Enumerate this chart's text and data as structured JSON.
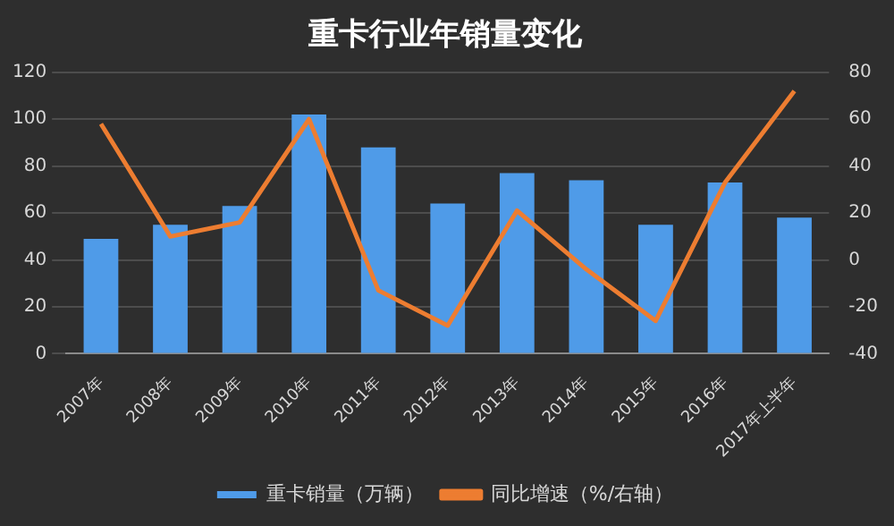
{
  "chart_data": {
    "type": "bar",
    "title": "重卡行业年销量变化",
    "categories": [
      "2007年",
      "2008年",
      "2009年",
      "2010年",
      "2011年",
      "2012年",
      "2013年",
      "2014年",
      "2015年",
      "2016年",
      "2017年上半年"
    ],
    "series": [
      {
        "name": "重卡销量（万辆）",
        "color": "#4f9be8",
        "values": [
          49,
          55,
          63,
          102,
          88,
          64,
          77,
          74,
          55,
          73,
          58
        ]
      },
      {
        "name": "同比增速（%/右轴）",
        "type": "line",
        "axis": "y2",
        "color": "#ed7d31",
        "values": [
          58,
          10,
          16,
          60,
          -13,
          -28,
          21,
          -4,
          -26,
          33,
          72
        ]
      }
    ],
    "ylim": [
      0,
      120
    ],
    "yticks": [
      0,
      20,
      40,
      60,
      80,
      100,
      120
    ],
    "y2lim": [
      -40,
      80
    ],
    "y2ticks": [
      -40,
      -20,
      0,
      20,
      40,
      60,
      80
    ],
    "grid": "y",
    "legend": "bottom",
    "marker": "none"
  }
}
